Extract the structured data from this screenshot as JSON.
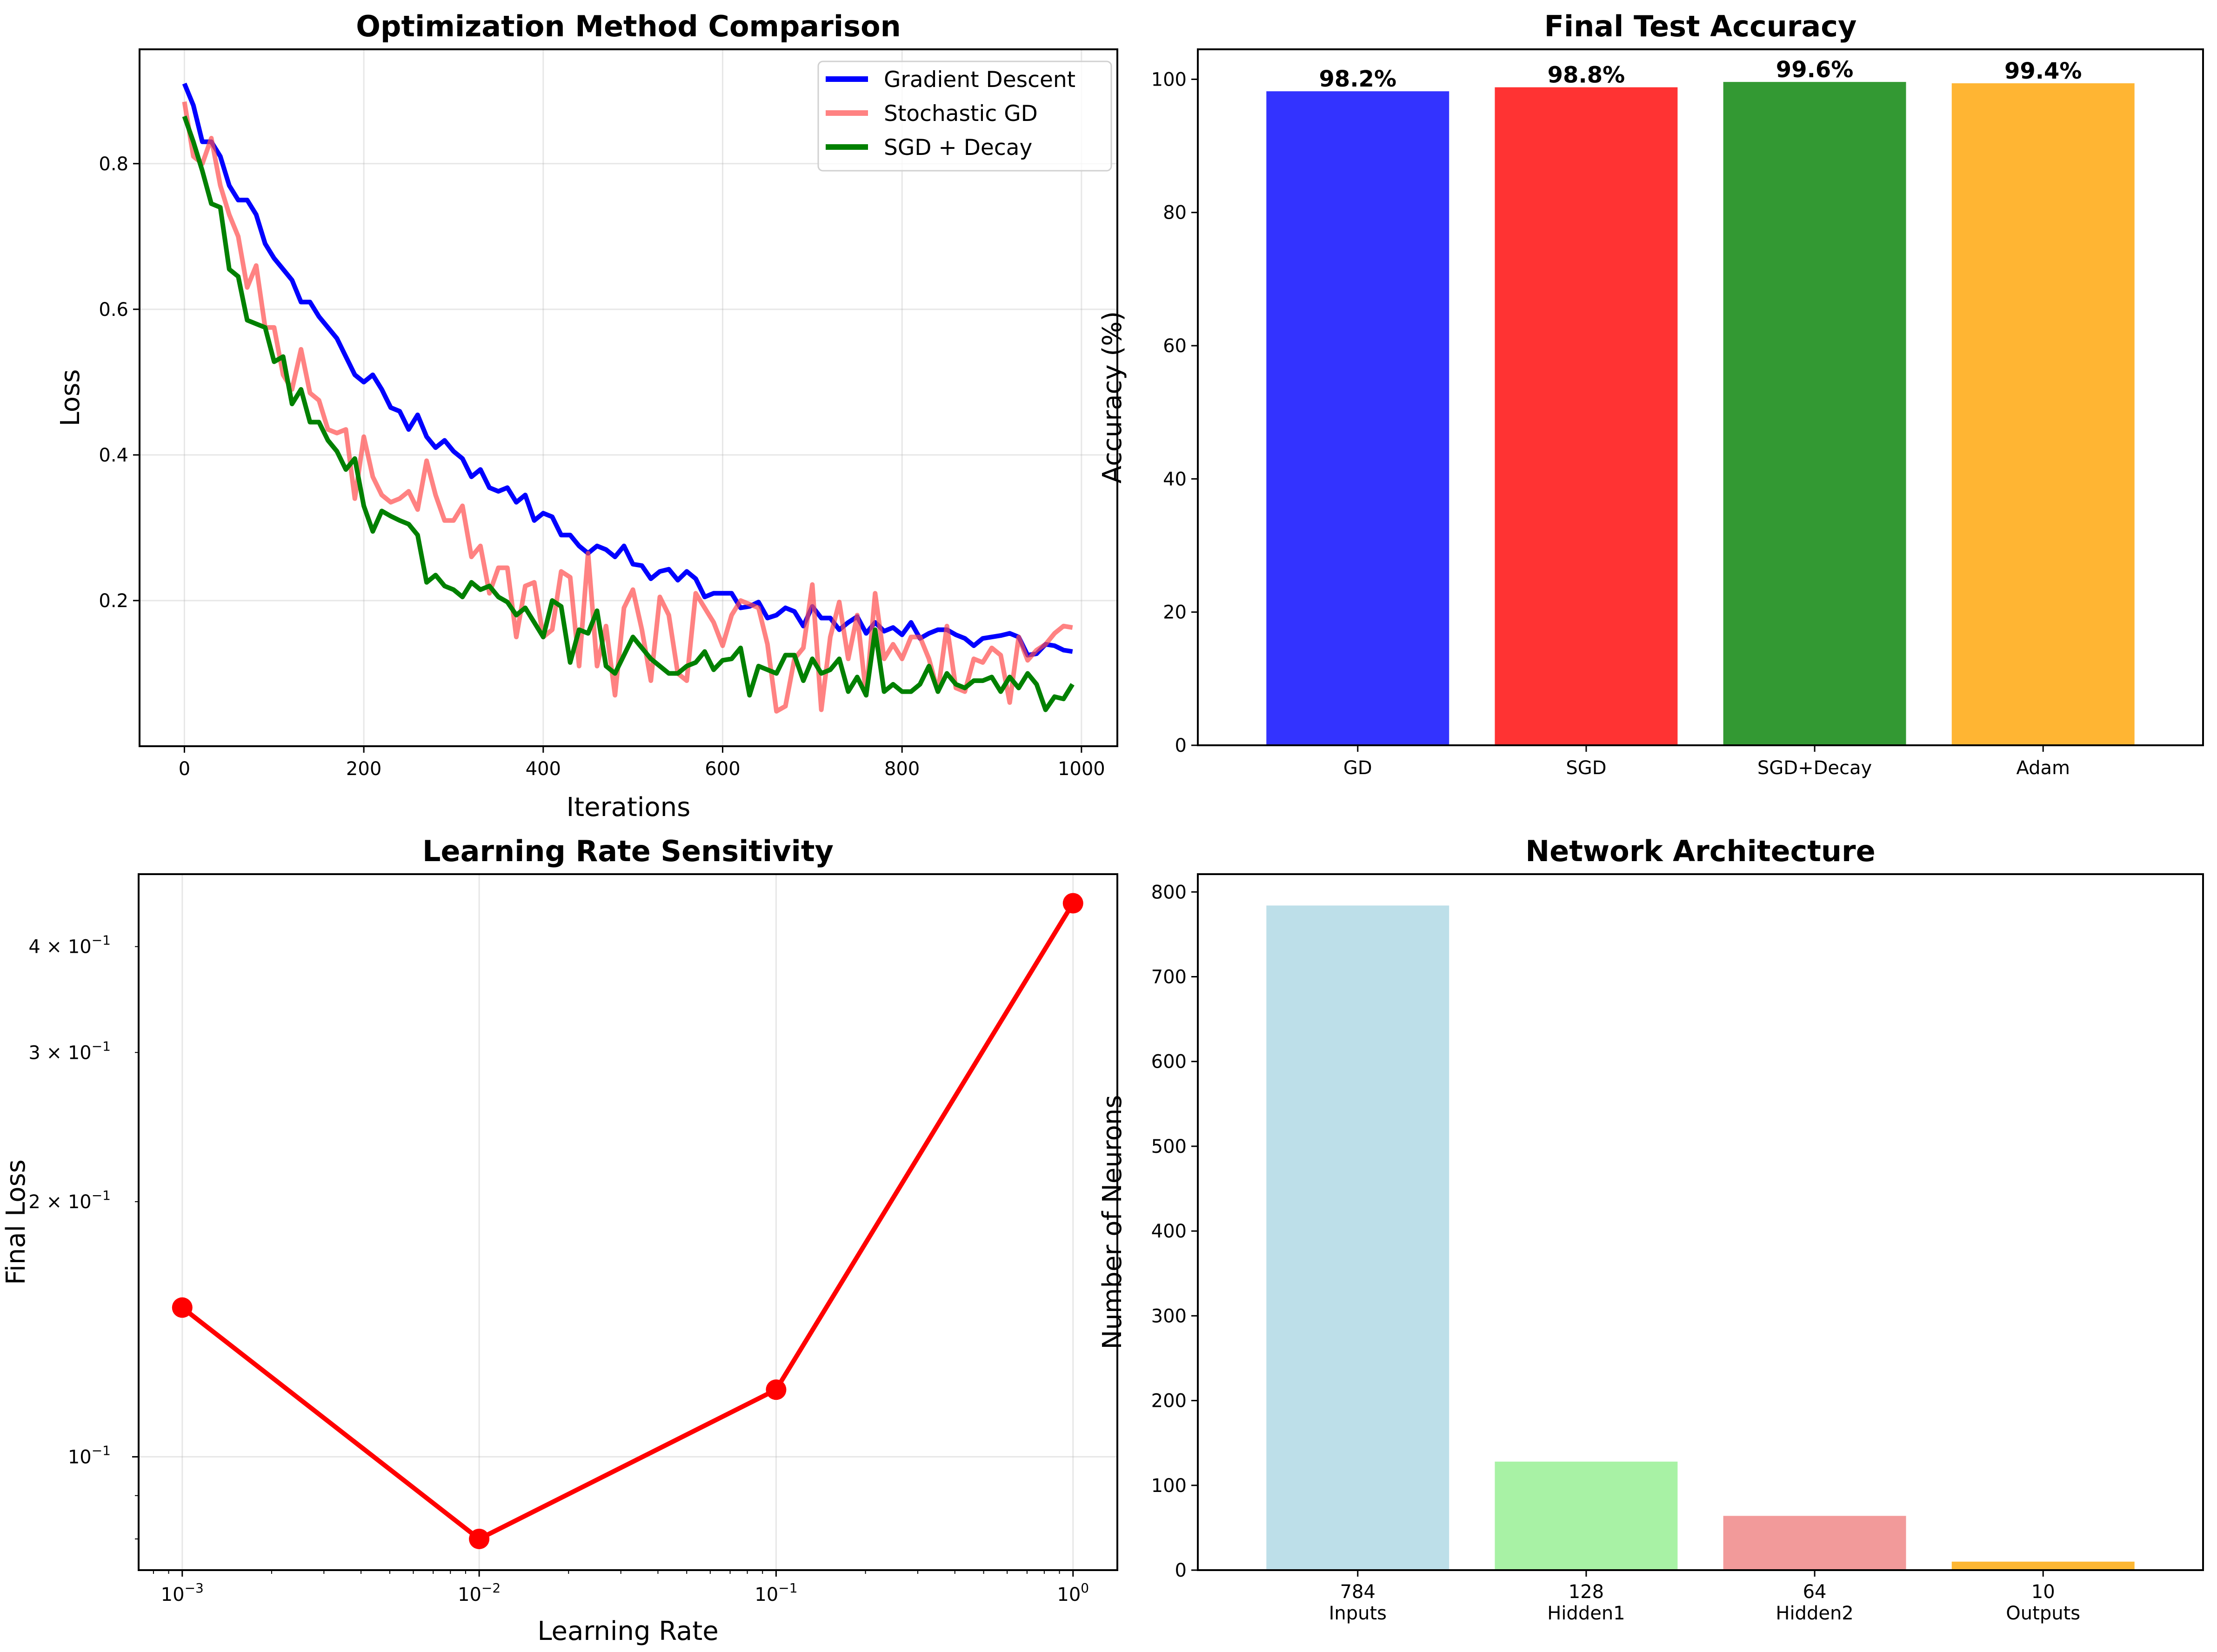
{
  "chart_data": [
    {
      "id": "optimization",
      "type": "line",
      "title": "Optimization Method Comparison",
      "xlabel": "Iterations",
      "ylabel": "Loss",
      "xlim": [
        -50,
        1040
      ],
      "ylim": [
        0.0,
        0.957
      ],
      "xticks": [
        0,
        200,
        400,
        600,
        800,
        1000
      ],
      "xtick_labels": [
        "0",
        "200",
        "400",
        "600",
        "800",
        "1000"
      ],
      "yticks": [
        0.2,
        0.4,
        0.6,
        0.8
      ],
      "ytick_labels": [
        "0.2",
        "0.4",
        "0.6",
        "0.8"
      ],
      "grid": true,
      "legend_position": "top-right",
      "x": [
        0,
        10,
        20,
        30,
        40,
        50,
        60,
        70,
        80,
        90,
        100,
        110,
        120,
        130,
        140,
        150,
        160,
        170,
        180,
        190,
        200,
        210,
        220,
        230,
        240,
        250,
        260,
        270,
        280,
        290,
        300,
        310,
        320,
        330,
        340,
        350,
        360,
        370,
        380,
        390,
        400,
        410,
        420,
        430,
        440,
        450,
        460,
        470,
        480,
        490,
        500,
        510,
        520,
        530,
        540,
        550,
        560,
        570,
        580,
        590,
        600,
        610,
        620,
        630,
        640,
        650,
        660,
        670,
        680,
        690,
        700,
        710,
        720,
        730,
        740,
        750,
        760,
        770,
        780,
        790,
        800,
        810,
        820,
        830,
        840,
        850,
        860,
        870,
        880,
        890,
        900,
        910,
        920,
        930,
        940,
        950,
        960,
        970,
        980,
        990
      ],
      "series": [
        {
          "name": "Gradient Descent",
          "color": "#0000ff",
          "values": [
            0.91,
            0.88,
            0.83,
            0.83,
            0.81,
            0.77,
            0.75,
            0.75,
            0.73,
            0.69,
            0.67,
            0.655,
            0.64,
            0.61,
            0.61,
            0.59,
            0.575,
            0.56,
            0.535,
            0.51,
            0.5,
            0.51,
            0.49,
            0.465,
            0.46,
            0.435,
            0.455,
            0.425,
            0.41,
            0.42,
            0.405,
            0.395,
            0.37,
            0.38,
            0.355,
            0.35,
            0.355,
            0.335,
            0.345,
            0.31,
            0.32,
            0.315,
            0.29,
            0.29,
            0.275,
            0.265,
            0.275,
            0.27,
            0.26,
            0.275,
            0.25,
            0.248,
            0.23,
            0.24,
            0.243,
            0.228,
            0.24,
            0.23,
            0.205,
            0.21,
            0.21,
            0.21,
            0.19,
            0.192,
            0.198,
            0.176,
            0.18,
            0.19,
            0.185,
            0.165,
            0.192,
            0.176,
            0.176,
            0.16,
            0.17,
            0.178,
            0.155,
            0.17,
            0.158,
            0.163,
            0.153,
            0.17,
            0.148,
            0.155,
            0.16,
            0.16,
            0.153,
            0.148,
            0.138,
            0.148,
            0.15,
            0.152,
            0.155,
            0.15,
            0.125,
            0.127,
            0.14,
            0.138,
            0.132,
            0.13
          ]
        },
        {
          "name": "Stochastic GD",
          "color": "#ff4d4d",
          "values": [
            0.885,
            0.81,
            0.8,
            0.835,
            0.77,
            0.73,
            0.7,
            0.63,
            0.66,
            0.575,
            0.575,
            0.51,
            0.49,
            0.545,
            0.485,
            0.475,
            0.435,
            0.43,
            0.435,
            0.34,
            0.425,
            0.37,
            0.345,
            0.335,
            0.34,
            0.35,
            0.325,
            0.392,
            0.345,
            0.31,
            0.31,
            0.33,
            0.26,
            0.275,
            0.21,
            0.245,
            0.245,
            0.15,
            0.22,
            0.225,
            0.15,
            0.16,
            0.24,
            0.232,
            0.11,
            0.265,
            0.11,
            0.165,
            0.07,
            0.19,
            0.215,
            0.16,
            0.09,
            0.205,
            0.18,
            0.1,
            0.09,
            0.21,
            0.19,
            0.17,
            0.138,
            0.18,
            0.2,
            0.195,
            0.19,
            0.14,
            0.048,
            0.055,
            0.12,
            0.135,
            0.222,
            0.05,
            0.15,
            0.198,
            0.12,
            0.18,
            0.07,
            0.21,
            0.12,
            0.14,
            0.12,
            0.15,
            0.15,
            0.12,
            0.075,
            0.165,
            0.08,
            0.075,
            0.12,
            0.115,
            0.135,
            0.125,
            0.06,
            0.15,
            0.118,
            0.132,
            0.14,
            0.155,
            0.165,
            0.163
          ]
        },
        {
          "name": "SGD + Decay",
          "color": "#008000",
          "values": [
            0.865,
            0.83,
            0.79,
            0.745,
            0.74,
            0.655,
            0.645,
            0.585,
            0.58,
            0.575,
            0.528,
            0.535,
            0.47,
            0.49,
            0.445,
            0.445,
            0.42,
            0.405,
            0.38,
            0.395,
            0.33,
            0.295,
            0.323,
            0.316,
            0.31,
            0.305,
            0.29,
            0.225,
            0.235,
            0.22,
            0.215,
            0.205,
            0.225,
            0.215,
            0.22,
            0.205,
            0.198,
            0.18,
            0.19,
            0.17,
            0.15,
            0.2,
            0.192,
            0.115,
            0.16,
            0.155,
            0.186,
            0.11,
            0.1,
            0.125,
            0.15,
            0.135,
            0.12,
            0.11,
            0.1,
            0.1,
            0.11,
            0.115,
            0.13,
            0.105,
            0.118,
            0.12,
            0.135,
            0.07,
            0.11,
            0.105,
            0.1,
            0.125,
            0.125,
            0.09,
            0.12,
            0.1,
            0.105,
            0.12,
            0.075,
            0.095,
            0.07,
            0.16,
            0.075,
            0.085,
            0.075,
            0.075,
            0.085,
            0.11,
            0.075,
            0.1,
            0.085,
            0.08,
            0.09,
            0.09,
            0.095,
            0.075,
            0.095,
            0.08,
            0.1,
            0.085,
            0.05,
            0.068,
            0.065,
            0.085
          ]
        }
      ]
    },
    {
      "id": "accuracy",
      "type": "bar",
      "title": "Final Test Accuracy",
      "xlabel": "",
      "ylabel": "Accuracy (%)",
      "ylim": [
        0,
        104.5
      ],
      "yticks": [
        0,
        20,
        40,
        60,
        80,
        100
      ],
      "ytick_labels": [
        "0",
        "20",
        "40",
        "60",
        "80",
        "100"
      ],
      "categories": [
        "GD",
        "SGD",
        "SGD+Decay",
        "Adam"
      ],
      "values": [
        98.2,
        98.8,
        99.6,
        99.4
      ],
      "data_labels": [
        "98.2%",
        "98.8%",
        "99.6%",
        "99.4%"
      ],
      "colors": [
        "#3333ff",
        "#ff3333",
        "#339933",
        "#ffb533"
      ],
      "grid": false
    },
    {
      "id": "lr_sensitivity",
      "type": "line",
      "title": "Learning Rate Sensitivity",
      "xlabel": "Learning Rate",
      "ylabel": "Final Loss",
      "xscale": "log",
      "yscale": "log",
      "xlim": [
        0.000713,
        1.41
      ],
      "ylim": [
        0.0735,
        0.487
      ],
      "xticks": [
        0.001,
        0.01,
        0.1,
        1
      ],
      "xtick_labels": [
        {
          "base": "10",
          "exp": "−3"
        },
        {
          "base": "10",
          "exp": "−2"
        },
        {
          "base": "10",
          "exp": "−1"
        },
        {
          "base": "10",
          "exp": "0"
        }
      ],
      "yticks": [
        0.1,
        0.2,
        0.3,
        0.4
      ],
      "ytick_labels": [
        {
          "base": "10",
          "exp": "−1"
        },
        {
          "base": "2 × 10",
          "exp": "−1"
        },
        {
          "base": "3 × 10",
          "exp": "−1"
        },
        {
          "base": "4 × 10",
          "exp": "−1"
        }
      ],
      "x": [
        0.001,
        0.01,
        0.1,
        1.0
      ],
      "values": [
        0.15,
        0.08,
        0.12,
        0.45
      ],
      "color": "#ff0000",
      "marker": "circle",
      "grid": true
    },
    {
      "id": "architecture",
      "type": "bar",
      "title": "Network Architecture",
      "xlabel": "",
      "ylabel": "Number of Neurons",
      "ylim": [
        0,
        821
      ],
      "yticks": [
        0,
        100,
        200,
        300,
        400,
        500,
        600,
        700,
        800
      ],
      "ytick_labels": [
        "0",
        "100",
        "200",
        "300",
        "400",
        "500",
        "600",
        "700",
        "800"
      ],
      "categories": [
        "784\nInputs",
        "128\nHidden1",
        "64\nHidden2",
        "10\nOutputs"
      ],
      "category_lines": [
        [
          "784",
          "Inputs"
        ],
        [
          "128",
          "Hidden1"
        ],
        [
          "64",
          "Hidden2"
        ],
        [
          "10",
          "Outputs"
        ]
      ],
      "values": [
        784,
        128,
        64,
        10
      ],
      "colors": [
        "#bddfe9",
        "#a8f2a5",
        "#f29a9a",
        "#fdb733"
      ],
      "grid": false
    }
  ]
}
